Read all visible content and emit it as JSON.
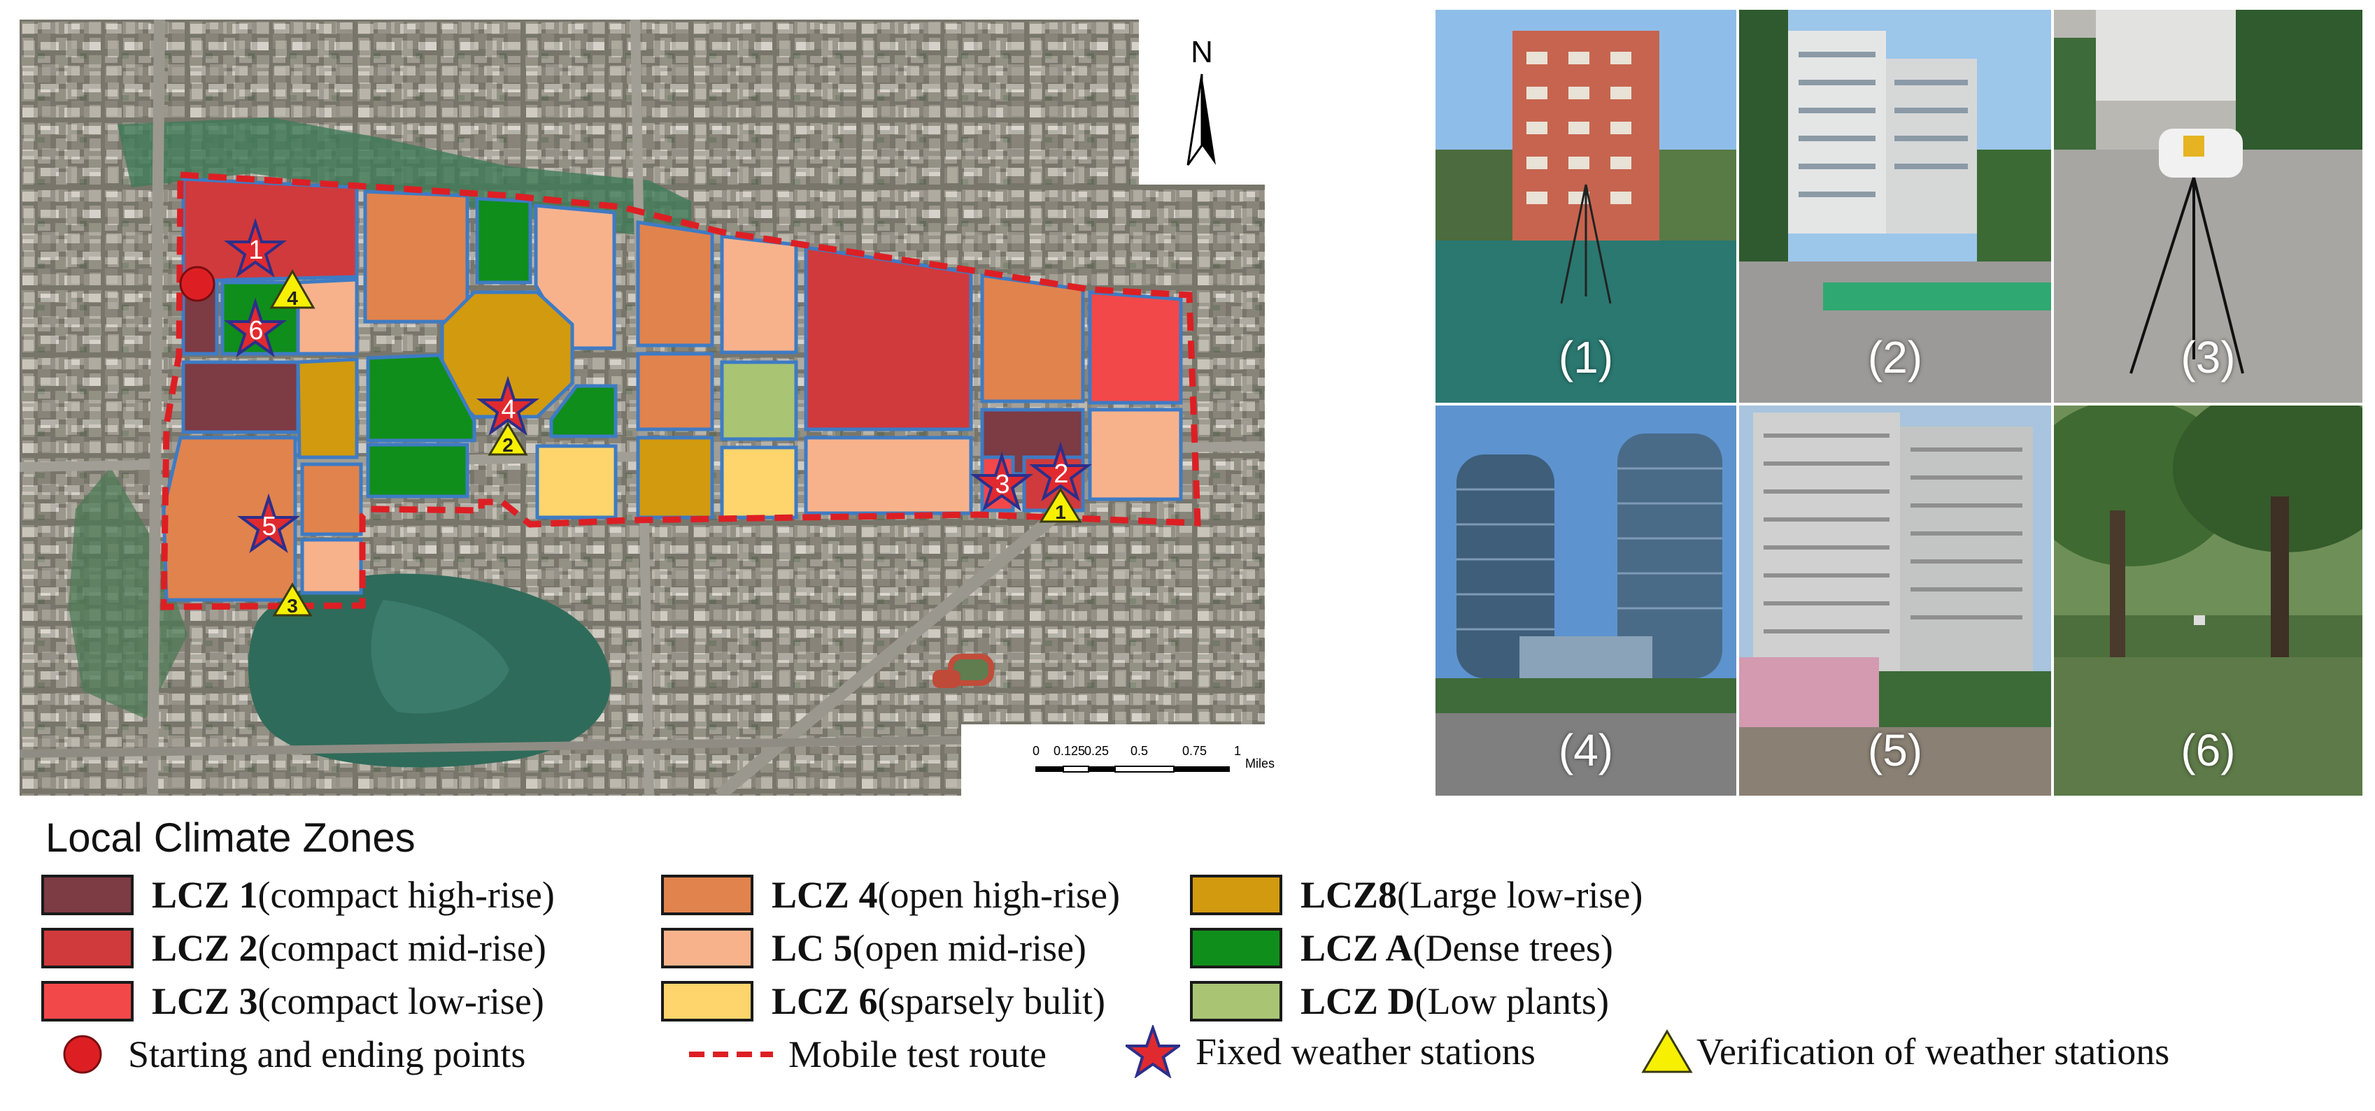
{
  "map": {
    "north_label": "N",
    "scale_ticks": [
      "0",
      "0.125",
      "0.25",
      "0.5",
      "0.75",
      "1"
    ],
    "scale_unit": "Miles",
    "station_numbers": [
      "1",
      "2",
      "3",
      "4",
      "5",
      "6"
    ],
    "verification_numbers": [
      "1",
      "2",
      "3",
      "4"
    ]
  },
  "photos": [
    {
      "label": "(1)"
    },
    {
      "label": "(2)"
    },
    {
      "label": "(3)"
    },
    {
      "label": "(4)"
    },
    {
      "label": "(5)"
    },
    {
      "label": "(6)"
    }
  ],
  "legend": {
    "title": "Local Climate Zones",
    "zones": [
      {
        "code": "LCZ 1",
        "desc": "(compact high-rise)",
        "color": "#7d3b44"
      },
      {
        "code": "LCZ 2",
        "desc": "(compact mid-rise)",
        "color": "#d03a3c"
      },
      {
        "code": "LCZ 3",
        "desc": "(compact low-rise)",
        "color": "#f2484a"
      },
      {
        "code": "LCZ 4",
        "desc": "(open high-rise)",
        "color": "#e1834d"
      },
      {
        "code": "LC 5",
        "desc": "(open mid-rise)",
        "color": "#f7b28c"
      },
      {
        "code": "LCZ 6",
        "desc": "(sparsely bulit)",
        "color": "#fdd56c"
      },
      {
        "code": "LCZ8",
        "desc": "(Large low-rise)",
        "color": "#d29a0f"
      },
      {
        "code": "LCZ A",
        "desc": " (Dense trees)",
        "color": "#0f8e1b"
      },
      {
        "code": "LCZ D",
        "desc": "(Low plants)",
        "color": "#a9c574"
      }
    ],
    "symbols": {
      "start_end": "Starting and ending points",
      "route": "Mobile test route",
      "fixed": "Fixed weather stations",
      "verification": "Verification of weather stations"
    }
  }
}
